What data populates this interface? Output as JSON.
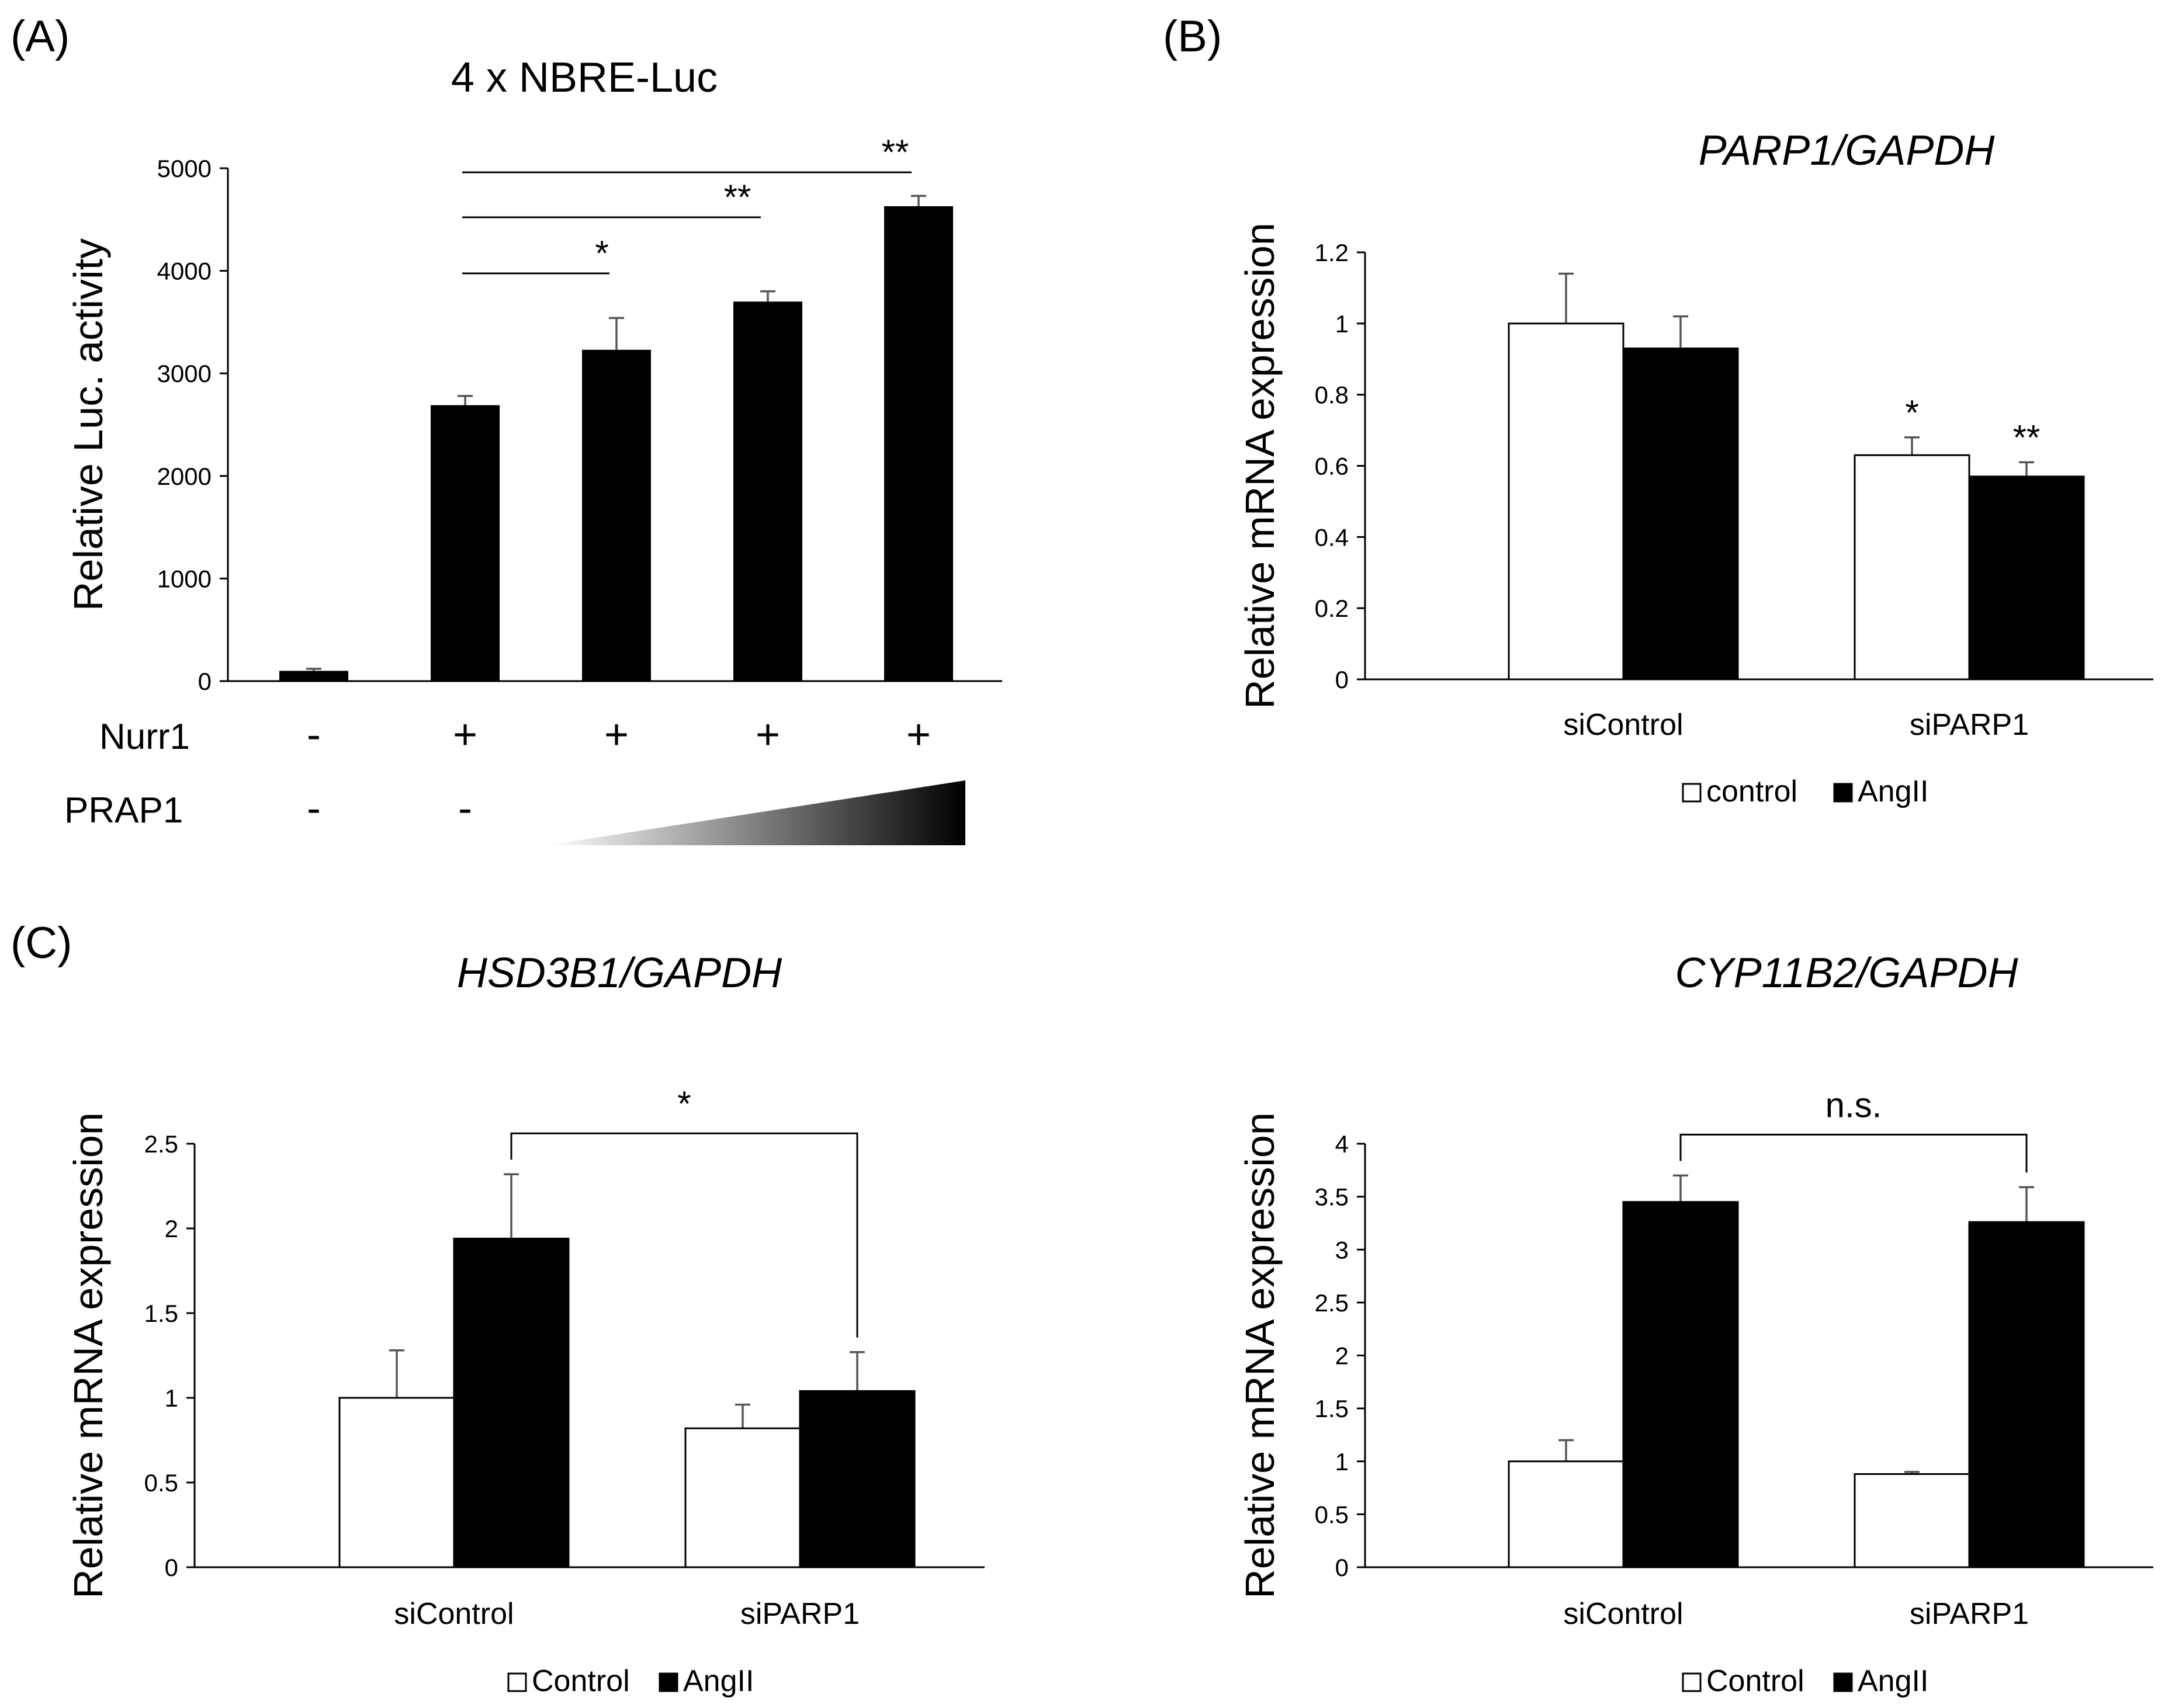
{
  "panels": {
    "A": {
      "letter": "(A)"
    },
    "B": {
      "letter": "(B)"
    },
    "C": {
      "letter": "(C)"
    }
  },
  "chart_data": [
    {
      "id": "A",
      "type": "bar",
      "title": "4 x NBRE-Luc",
      "ylabel": "Relative Luc. activity",
      "ylim": [
        0,
        5000
      ],
      "yticks": [
        0,
        1000,
        2000,
        3000,
        4000,
        5000
      ],
      "values": [
        100,
        2690,
        3230,
        3700,
        4630
      ],
      "errors": [
        20,
        90,
        310,
        100,
        100
      ],
      "bar_color": "#000000",
      "conditions": [
        {
          "label": "Nurr1",
          "values": [
            "-",
            "+",
            "+",
            "+",
            "+"
          ]
        },
        {
          "label": "PRAP1",
          "values": [
            "-",
            "-"
          ],
          "gradient_over": [
            2,
            3,
            4
          ]
        }
      ],
      "significance": [
        {
          "from": 1,
          "to": 2,
          "label": "*"
        },
        {
          "from": 1,
          "to": 3,
          "label": "**"
        },
        {
          "from": 1,
          "to": 4,
          "label": "**"
        }
      ]
    },
    {
      "id": "B",
      "type": "bar",
      "title_italic": "PARP1",
      "title_rest": "/GAPDH",
      "ylabel": "Relative mRNA expression",
      "ylim": [
        0,
        1.2
      ],
      "yticks": [
        "0",
        "0.2",
        "0.4",
        "0.6",
        "0.8",
        "1",
        "1.2"
      ],
      "categories": [
        "siControl",
        "siPARP1"
      ],
      "series": [
        {
          "name": "control",
          "color": "#ffffff",
          "values": [
            1.0,
            0.63
          ],
          "errors": [
            0.14,
            0.05
          ]
        },
        {
          "name": "AngII",
          "color": "#000000",
          "values": [
            0.93,
            0.57
          ],
          "errors": [
            0.09,
            0.04
          ]
        }
      ],
      "bar_marks": [
        {
          "cat": 1,
          "series": 0,
          "label": "*"
        },
        {
          "cat": 1,
          "series": 1,
          "label": "**"
        }
      ],
      "legend": [
        "control",
        "AngII"
      ]
    },
    {
      "id": "C1",
      "type": "bar",
      "title_italic": "HSD3B1",
      "title_rest": "/GAPDH",
      "ylabel": "Relative mRNA expression",
      "ylim": [
        0,
        2.5
      ],
      "yticks": [
        "0",
        "0.5",
        "1",
        "1.5",
        "2",
        "2.5"
      ],
      "categories": [
        "siControl",
        "siPARP1"
      ],
      "series": [
        {
          "name": "Control",
          "color": "#ffffff",
          "values": [
            1.0,
            0.82
          ],
          "errors": [
            0.28,
            0.14
          ]
        },
        {
          "name": "AngII",
          "color": "#000000",
          "values": [
            1.94,
            1.04
          ],
          "errors": [
            0.38,
            0.23
          ]
        }
      ],
      "bracket": {
        "from_cat": 0,
        "to_cat": 1,
        "series": 1,
        "label": "*"
      },
      "legend": [
        "Control",
        "AngII"
      ]
    },
    {
      "id": "C2",
      "type": "bar",
      "title_italic": "CYP11B2",
      "title_rest": "/GAPDH",
      "ylabel": "Relative mRNA expression",
      "ylim": [
        0,
        4
      ],
      "yticks": [
        "0",
        "0.5",
        "1",
        "1.5",
        "2",
        "2.5",
        "3",
        "3.5",
        "4"
      ],
      "categories": [
        "siControl",
        "siPARP1"
      ],
      "series": [
        {
          "name": "Control",
          "color": "#ffffff",
          "values": [
            1.0,
            0.88
          ],
          "errors": [
            0.2,
            0.02
          ]
        },
        {
          "name": "AngII",
          "color": "#000000",
          "values": [
            3.45,
            3.26
          ],
          "errors": [
            0.25,
            0.33
          ]
        }
      ],
      "bracket": {
        "from_cat": 0,
        "to_cat": 1,
        "series": 1,
        "label": "n.s."
      },
      "legend": [
        "Control",
        "AngII"
      ]
    }
  ]
}
